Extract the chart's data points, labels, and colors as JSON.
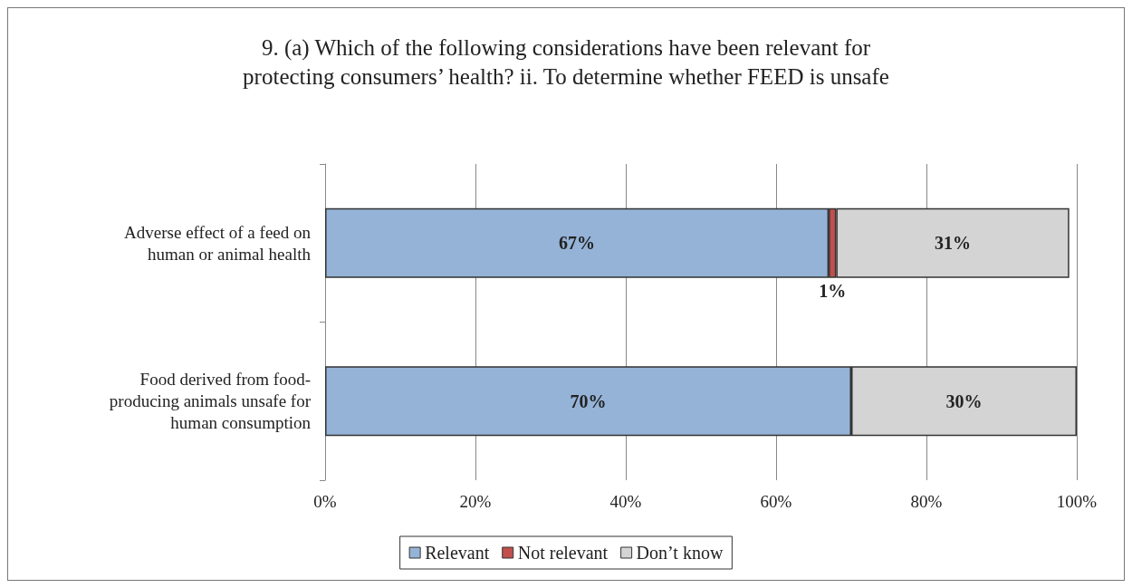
{
  "chart_data": {
    "type": "bar",
    "orientation": "horizontal",
    "stacked": true,
    "title": "9. (a) Which of the following considerations have been relevant for\nprotecting consumers’ health? ii. To determine whether FEED is unsafe",
    "categories": [
      "Adverse effect of a feed on\nhuman or animal health",
      "Food derived from food-\nproducing animals unsafe for\nhuman consumption"
    ],
    "series": [
      {
        "name": "Relevant",
        "color": "#95b3d7",
        "values": [
          67,
          70
        ],
        "value_labels": [
          "67%",
          "70%"
        ]
      },
      {
        "name": "Not relevant",
        "color": "#c0504d",
        "values": [
          1,
          null
        ],
        "value_labels": [
          "1%",
          null
        ]
      },
      {
        "name": "Don’t know",
        "color": "#d4d4d4",
        "values": [
          31,
          30
        ],
        "value_labels": [
          "31%",
          "30%"
        ]
      }
    ],
    "xlim": [
      0,
      100
    ],
    "xticks": [
      {
        "value": 0,
        "label": "0%"
      },
      {
        "value": 20,
        "label": "20%"
      },
      {
        "value": 40,
        "label": "40%"
      },
      {
        "value": 60,
        "label": "60%"
      },
      {
        "value": 80,
        "label": "80%"
      },
      {
        "value": 100,
        "label": "100%"
      }
    ],
    "grid": "x",
    "legend": "bottom"
  }
}
